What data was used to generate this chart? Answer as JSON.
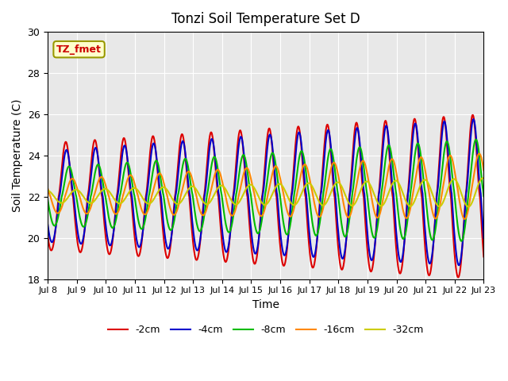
{
  "title": "Tonzi Soil Temperature Set D",
  "xlabel": "Time",
  "ylabel": "Soil Temperature (C)",
  "ylim": [
    18,
    30
  ],
  "yticks": [
    18,
    20,
    22,
    24,
    26,
    28,
    30
  ],
  "annotation": "TZ_fmet",
  "annotation_color": "#cc0000",
  "annotation_bg": "#ffffcc",
  "annotation_border": "#999900",
  "background_color": "#e8e8e8",
  "series": {
    "-2cm": {
      "color": "#dd0000",
      "lw": 1.5
    },
    "-4cm": {
      "color": "#0000cc",
      "lw": 1.5
    },
    "-8cm": {
      "color": "#00bb00",
      "lw": 1.5
    },
    "-16cm": {
      "color": "#ff8800",
      "lw": 1.5
    },
    "-32cm": {
      "color": "#cccc00",
      "lw": 1.5
    }
  },
  "xtick_labels": [
    "Jul 8",
    "Jul 9",
    "Jul 10",
    "Jul 11",
    "Jul 12",
    "Jul 13",
    "Jul 14",
    "Jul 15",
    "Jul 16",
    "Jul 17",
    "Jul 18",
    "Jul 19",
    "Jul 20",
    "Jul 21",
    "Jul 22",
    "Jul 23"
  ],
  "xtick_positions": [
    0,
    1,
    2,
    3,
    4,
    5,
    6,
    7,
    8,
    9,
    10,
    11,
    12,
    13,
    14,
    15
  ]
}
